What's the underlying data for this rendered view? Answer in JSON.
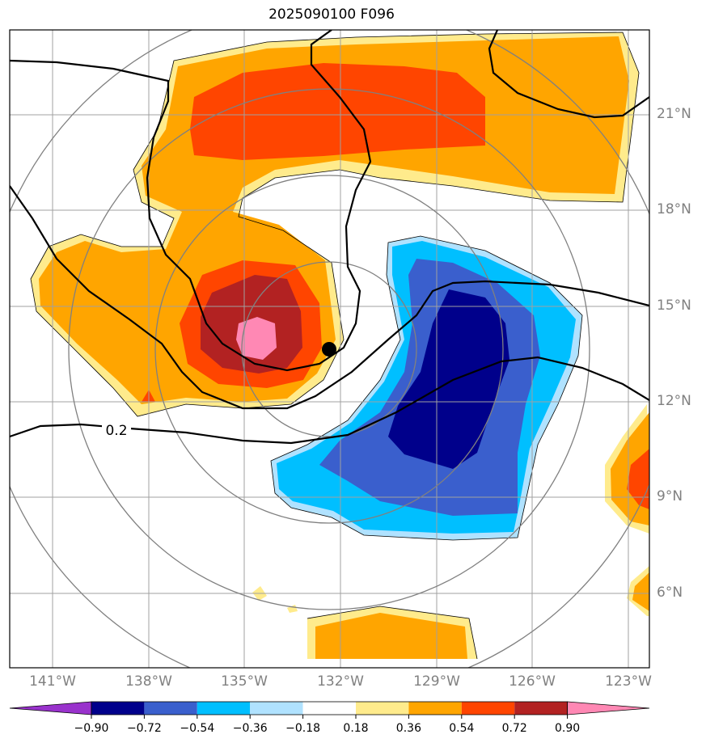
{
  "title": "2025090100 F096",
  "lat_labels": [
    "21°N",
    "18°N",
    "15°N",
    "12°N",
    "9°N",
    "6°N"
  ],
  "lon_labels": [
    "141°W",
    "138°W",
    "135°W",
    "132°W",
    "129°W",
    "126°W",
    "123°W"
  ],
  "contour_label": "0.2",
  "colorbar": {
    "ticks": [
      "−0.90",
      "−0.72",
      "−0.54",
      "−0.36",
      "−0.18",
      "0.18",
      "0.36",
      "0.54",
      "0.72",
      "0.90"
    ],
    "colors": [
      "#9932cc",
      "#00008b",
      "#3a5fcd",
      "#00bfff",
      "#b0e2ff",
      "#ffffff",
      "#ffeb8c",
      "#ffa500",
      "#ff4500",
      "#b22222",
      "#ff88b4"
    ]
  },
  "colors": {
    "frame": "#000000",
    "grid": "#a0a0a0",
    "range_rings": "#808080",
    "label_gray": "#808080"
  },
  "marker": "storm-center-dot"
}
